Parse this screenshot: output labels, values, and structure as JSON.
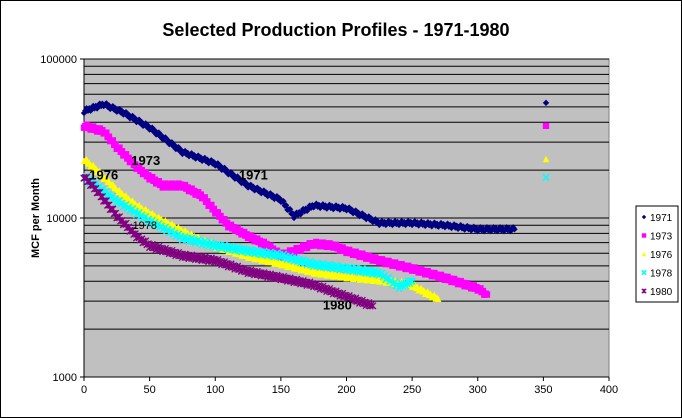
{
  "chart_data": {
    "type": "scatter",
    "title": "Selected Production Profiles - 1971-1980",
    "xlabel": "",
    "ylabel": "MCF per Month",
    "xlim": [
      0,
      400
    ],
    "ylim": [
      1000,
      100000
    ],
    "yscale": "log",
    "xticks": [
      "0",
      "50",
      "100",
      "150",
      "200",
      "250",
      "300",
      "350",
      "400"
    ],
    "yticks": [
      "1000",
      "10000",
      "100000"
    ],
    "grid": true,
    "legend": "right",
    "series": [
      {
        "name": "1971",
        "color": "#000080",
        "marker": "diamond",
        "x": [
          0,
          15,
          30,
          50,
          75,
          100,
          125,
          150,
          160,
          175,
          200,
          225,
          250,
          275,
          300,
          328
        ],
        "y": [
          47000,
          52000,
          46000,
          37000,
          26000,
          22000,
          16000,
          13000,
          10300,
          12000,
          11500,
          9300,
          9300,
          9000,
          8500,
          8500
        ],
        "extra": {
          "x": 352,
          "y": 53000
        }
      },
      {
        "name": "1973",
        "color": "#FF00FF",
        "marker": "square",
        "x": [
          0,
          15,
          25,
          40,
          50,
          60,
          75,
          90,
          100,
          110,
          125,
          140,
          150,
          160,
          175,
          190,
          200,
          225,
          250,
          275,
          300,
          307
        ],
        "y": [
          38000,
          35000,
          28000,
          21000,
          18000,
          16000,
          16000,
          13700,
          11000,
          9000,
          7700,
          6700,
          5800,
          6200,
          6900,
          6700,
          6200,
          5400,
          4800,
          4200,
          3600,
          3300
        ],
        "extra": {
          "x": 352,
          "y": 38000
        }
      },
      {
        "name": "1976",
        "color": "#FFFF00",
        "marker": "triangle",
        "x": [
          0,
          10,
          25,
          40,
          50,
          60,
          75,
          90,
          100,
          125,
          150,
          175,
          200,
          225,
          250,
          270
        ],
        "y": [
          23500,
          20000,
          15000,
          12000,
          10700,
          9600,
          8300,
          7200,
          6700,
          5800,
          5200,
          4600,
          4300,
          4100,
          3800,
          3100
        ],
        "extra": {
          "x": 352,
          "y": 23500
        }
      },
      {
        "name": "1978",
        "color": "#00FFFF",
        "marker": "x",
        "x": [
          0,
          25,
          50,
          75,
          100,
          125,
          150,
          175,
          200,
          225,
          240,
          250
        ],
        "y": [
          18300,
          12800,
          9600,
          7500,
          6700,
          6200,
          5800,
          5100,
          4800,
          4500,
          3700,
          4000
        ],
        "extra": {
          "x": 352,
          "y": 18000
        }
      },
      {
        "name": "1980",
        "color": "#800080",
        "marker": "star",
        "x": [
          0,
          10,
          25,
          40,
          50,
          75,
          100,
          125,
          150,
          175,
          200,
          220
        ],
        "y": [
          18300,
          14800,
          10300,
          7700,
          6700,
          5800,
          5400,
          4600,
          4200,
          3800,
          3200,
          2800
        ]
      }
    ],
    "annotations": [
      {
        "text": "1971",
        "x": 118,
        "y": 17500
      },
      {
        "text": "1973",
        "x": 36,
        "y": 21500
      },
      {
        "text": "1976",
        "x": 4,
        "y": 17500
      },
      {
        "text": "1978",
        "x": 37,
        "y": 8500
      },
      {
        "text": "1980",
        "x": 182,
        "y": 2650
      }
    ]
  }
}
